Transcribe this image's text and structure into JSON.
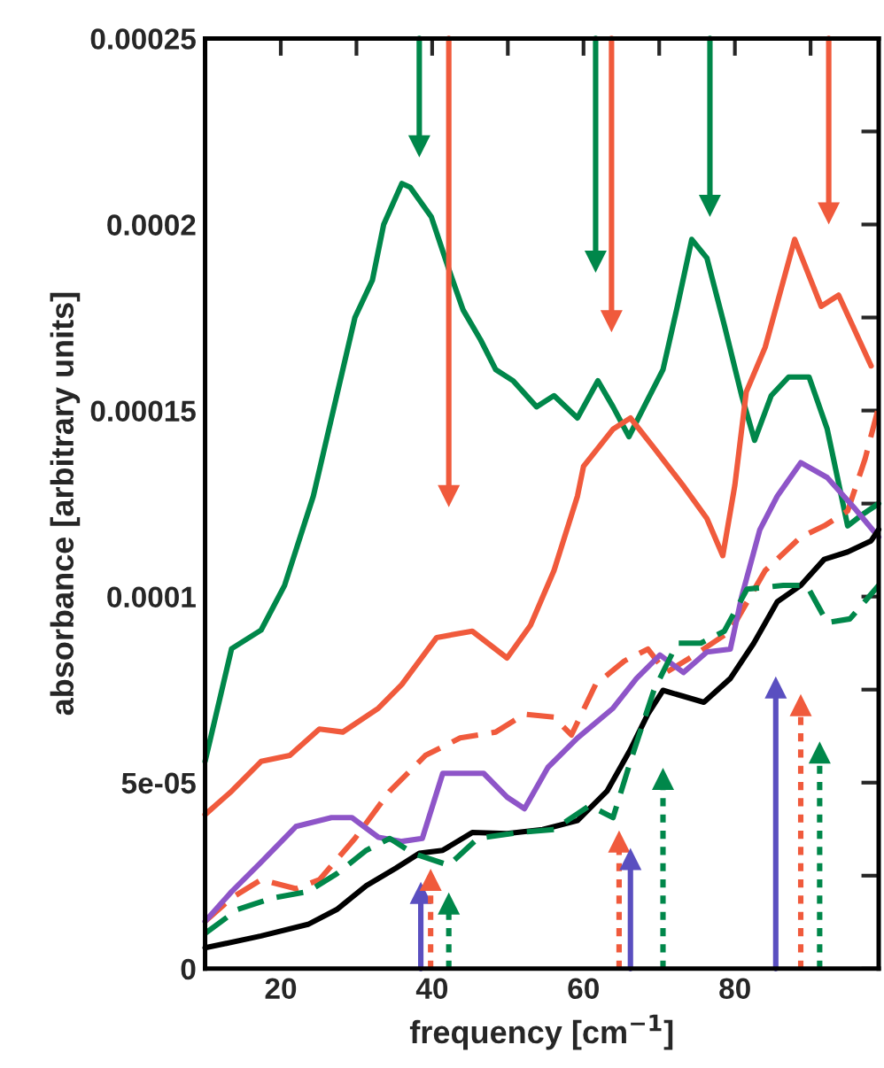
{
  "chart_data": {
    "type": "line",
    "xlabel": "frequency [cm$^{−1}$]",
    "ylabel": "absorbance [arbitrary units]",
    "xlim": [
      10,
      99
    ],
    "ylim": [
      0,
      0.00025
    ],
    "xticks": [
      {
        "value": 10,
        "label": null
      },
      20,
      {
        "value": 30,
        "label": null
      },
      40,
      {
        "value": 50,
        "label": null
      },
      60,
      {
        "value": 70,
        "label": null
      },
      80,
      {
        "value": 90,
        "label": null
      }
    ],
    "yticks": [
      {
        "value": 0,
        "label": "0"
      },
      {
        "value": 2.5e-05,
        "label": null
      },
      {
        "value": 5e-05,
        "label": "5e-05"
      },
      {
        "value": 7.5e-05,
        "label": null
      },
      {
        "value": 0.0001,
        "label": "0.0001"
      },
      {
        "value": 0.000125,
        "label": null
      },
      {
        "value": 0.00015,
        "label": "0.00015"
      },
      {
        "value": 0.000175,
        "label": null
      },
      {
        "value": 0.0002,
        "label": "0.0002"
      },
      {
        "value": 0.000225,
        "label": null
      },
      {
        "value": 0.00025,
        "label": "0.00025"
      }
    ],
    "grid": false,
    "legend": false,
    "series": [
      {
        "color": "#00874a",
        "line_style": "solid",
        "x": [
          10,
          13.5,
          17.4,
          20.5,
          24.3,
          29.8,
          32.1,
          33.6,
          36,
          37.1,
          39.9,
          42.2,
          44.1,
          46.4,
          48.4,
          50.7,
          53.8,
          56.1,
          59.2,
          61.9,
          63.9,
          66,
          68.5,
          70.5,
          72.4,
          74.3,
          76.3,
          78.6,
          80.9,
          82.6,
          84.8,
          87.1,
          89.8,
          92.2,
          94.9,
          96.8,
          99
        ],
        "values": [
          5.57e-05,
          8.6e-05,
          9.1e-05,
          0.000103,
          0.000127,
          0.000175,
          0.000185,
          0.0002,
          0.000211,
          0.00021,
          0.000202,
          0.000188,
          0.000177,
          0.000169,
          0.000161,
          0.000158,
          0.000151,
          0.000154,
          0.000148,
          0.000158,
          0.000151,
          0.000143,
          0.000153,
          0.000161,
          0.000178,
          0.000196,
          0.000191,
          0.000173,
          0.000154,
          0.000142,
          0.000154,
          0.000159,
          0.000159,
          0.000145,
          0.000119,
          0.000122,
          0.000125
        ]
      },
      {
        "color": "#f05a3c",
        "line_style": "solid",
        "x": [
          10,
          13.5,
          17.4,
          21.2,
          25.1,
          28.2,
          32.9,
          36,
          40.6,
          45.3,
          49.9,
          53,
          56.1,
          59.2,
          60,
          63.9,
          66.2,
          69.3,
          73.1,
          76.3,
          78.4,
          80,
          81.5,
          84,
          87.9,
          91.4,
          93.7,
          98
        ],
        "values": [
          4.14e-05,
          4.77e-05,
          5.57e-05,
          5.73e-05,
          6.44e-05,
          6.36e-05,
          7e-05,
          7.64e-05,
          8.9e-05,
          9.07e-05,
          8.35e-05,
          9.23e-05,
          0.000107,
          0.000127,
          0.000135,
          0.000145,
          0.000148,
          0.00014,
          0.00013,
          0.000121,
          0.000111,
          0.00013,
          0.000155,
          0.000167,
          0.000196,
          0.000178,
          0.000181,
          0.000162
        ]
      },
      {
        "color": "#f05a3c",
        "line_style": "dashed",
        "x": [
          10,
          13.5,
          17.4,
          22,
          25.1,
          29.8,
          34.4,
          39.1,
          43.7,
          48.4,
          52.2,
          56.1,
          58.4,
          61.6,
          65.4,
          68.5,
          70.9,
          74.7,
          79.4,
          84,
          88.7,
          91.8,
          94.9,
          97.2,
          99
        ],
        "values": [
          1.27e-05,
          1.9e-05,
          2.39e-05,
          2.15e-05,
          2.39e-05,
          3.5e-05,
          4.77e-05,
          5.73e-05,
          6.2e-05,
          6.36e-05,
          6.84e-05,
          6.76e-05,
          6.28e-05,
          7.64e-05,
          8.27e-05,
          8.59e-05,
          7.96e-05,
          8.43e-05,
          9.07e-05,
          0.000107,
          0.000116,
          0.000119,
          0.000123,
          0.000137,
          0.000151
        ]
      },
      {
        "color": "#8e55c8",
        "line_style": "solid",
        "x": [
          10,
          13.5,
          17.4,
          22,
          26.7,
          29.4,
          32.9,
          36,
          38.7,
          41.4,
          43.7,
          46.8,
          49.9,
          52.2,
          55.3,
          59.2,
          63.9,
          67,
          70.1,
          73.2,
          76.3,
          79.4,
          80.9,
          83.3,
          85.6,
          88.7,
          92.2,
          95.7,
          99
        ],
        "values": [
          1.27e-05,
          2.07e-05,
          2.86e-05,
          3.82e-05,
          4.06e-05,
          4.06e-05,
          3.53e-05,
          3.42e-05,
          3.5e-05,
          5.25e-05,
          5.25e-05,
          5.25e-05,
          4.61e-05,
          4.3e-05,
          5.41e-05,
          6.2e-05,
          7e-05,
          7.8e-05,
          8.43e-05,
          7.96e-05,
          8.51e-05,
          8.59e-05,
          0.0001,
          0.000118,
          0.000127,
          0.000136,
          0.000132,
          0.000124,
          0.000116
        ]
      },
      {
        "color": "#000000",
        "line_style": "solid",
        "x": [
          10,
          17.4,
          23.6,
          27.4,
          31.3,
          35.2,
          38.3,
          41.4,
          45.3,
          49.9,
          54.6,
          59.2,
          63.1,
          66.2,
          68.5,
          70.5,
          73.2,
          75.9,
          79.4,
          82.5,
          85.6,
          88.7,
          91.8,
          94.9,
          98,
          99
        ],
        "values": [
          5.6e-06,
          8.8e-06,
          1.19e-05,
          1.59e-05,
          2.23e-05,
          2.7e-05,
          3.1e-05,
          3.18e-05,
          3.66e-05,
          3.63e-05,
          3.74e-05,
          3.98e-05,
          4.77e-05,
          5.89e-05,
          6.84e-05,
          7.48e-05,
          7.32e-05,
          7.16e-05,
          7.8e-05,
          8.75e-05,
          9.86e-05,
          0.000103,
          0.00011,
          0.000112,
          0.000115,
          0.000118
        ]
      },
      {
        "color": "#00874a",
        "line_style": "dashed",
        "x": [
          10,
          14.3,
          18.9,
          23.6,
          27.4,
          31.3,
          34.4,
          37.5,
          42.2,
          46,
          51.5,
          56.1,
          60.8,
          63.9,
          66.2,
          69.3,
          72.4,
          75.5,
          78.6,
          81.6,
          86.4,
          89.5,
          92.2,
          95.2,
          99
        ],
        "values": [
          9.5e-06,
          1.59e-05,
          1.9e-05,
          2.07e-05,
          2.55e-05,
          3.18e-05,
          3.5e-05,
          3.1e-05,
          2.78e-05,
          3.5e-05,
          3.66e-05,
          3.74e-05,
          4.38e-05,
          4.06e-05,
          5.57e-05,
          7.48e-05,
          8.75e-05,
          8.75e-05,
          9.07e-05,
          0.000102,
          0.000103,
          0.000103,
          9.3e-05,
          9.4e-05,
          0.000103
        ]
      },
      {
        "color": "#00874a",
        "line_style": "solid",
        "marker": "triangle",
        "x": [
          38.3,
          38.3
        ],
        "values": [
          0.00025,
          0.000221
        ]
      },
      {
        "color": "#f05a3c",
        "line_style": "solid",
        "marker": "triangle",
        "x": [
          42.2,
          42.2
        ],
        "values": [
          0.00025,
          0.000127
        ]
      },
      {
        "color": "#00874a",
        "line_style": "solid",
        "marker": "triangle",
        "x": [
          61.6,
          61.6
        ],
        "values": [
          0.00025,
          0.00019
        ]
      },
      {
        "color": "#f05a3c",
        "line_style": "solid",
        "marker": "triangle",
        "x": [
          63.7,
          63.7
        ],
        "values": [
          0.00025,
          0.000174
        ]
      },
      {
        "color": "#00874a",
        "line_style": "solid",
        "marker": "triangle",
        "x": [
          76.7,
          76.7
        ],
        "values": [
          0.00025,
          0.000205
        ]
      },
      {
        "color": "#f05a3c",
        "line_style": "solid",
        "marker": "triangle",
        "x": [
          92.4,
          92.4
        ],
        "values": [
          0.00025,
          0.000203
        ]
      },
      {
        "color": "#5a4fc0",
        "line_style": "solid",
        "marker": "triangle",
        "x": [
          38.5,
          38.5
        ],
        "values": [
          0,
          2.04e-05
        ]
      },
      {
        "color": "#f05a3c",
        "line_style": "dotted",
        "marker": "triangle",
        "x": [
          39.8,
          39.8
        ],
        "values": [
          0,
          2.39e-05
        ]
      },
      {
        "color": "#00874a",
        "line_style": "dotted",
        "marker": "triangle",
        "x": [
          42.2,
          42.2
        ],
        "values": [
          0,
          1.75e-05
        ]
      },
      {
        "color": "#f05a3c",
        "line_style": "dotted",
        "marker": "triangle",
        "x": [
          64.7,
          64.7
        ],
        "values": [
          0,
          3.42e-05
        ]
      },
      {
        "color": "#5a4fc0",
        "line_style": "solid",
        "marker": "triangle",
        "x": [
          66.2,
          66.2
        ],
        "values": [
          0,
          2.95e-05
        ]
      },
      {
        "color": "#00874a",
        "line_style": "dotted",
        "marker": "triangle",
        "x": [
          70.5,
          70.5
        ],
        "values": [
          0,
          5.1e-05
        ]
      },
      {
        "color": "#5a4fc0",
        "line_style": "solid",
        "marker": "triangle",
        "x": [
          85.4,
          85.4
        ],
        "values": [
          0,
          7.56e-05
        ]
      },
      {
        "color": "#f05a3c",
        "line_style": "dotted",
        "marker": "triangle",
        "x": [
          88.7,
          88.7
        ],
        "values": [
          0,
          7.08e-05
        ]
      },
      {
        "color": "#00874a",
        "line_style": "dotted",
        "marker": "triangle",
        "x": [
          91.2,
          91.2
        ],
        "values": [
          0,
          5.81e-05
        ]
      }
    ]
  }
}
